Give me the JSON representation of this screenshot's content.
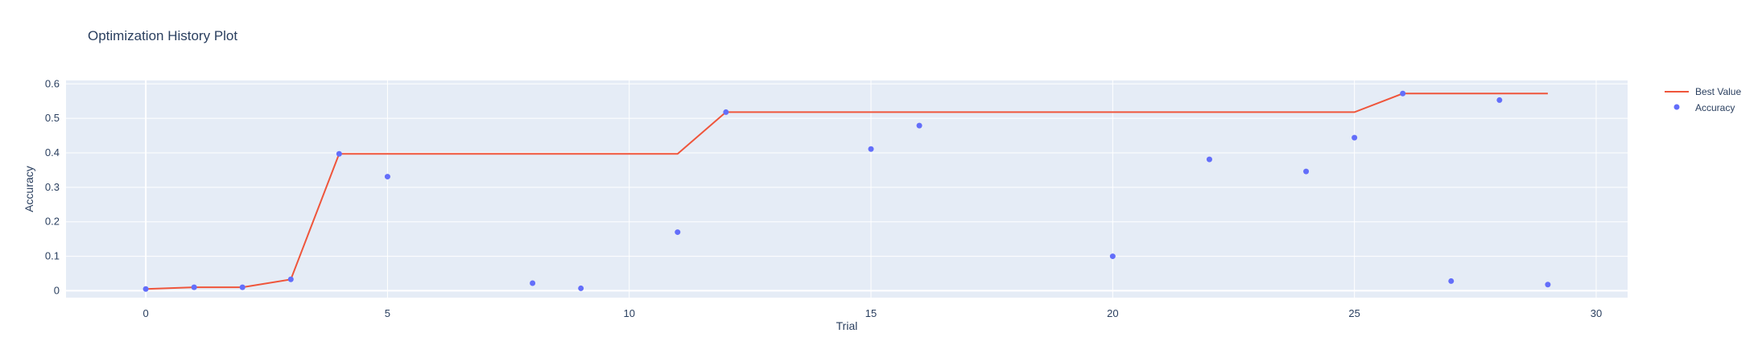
{
  "chart_data": {
    "type": "scatter",
    "title": "Optimization History Plot",
    "xlabel": "Trial",
    "ylabel": "Accuracy",
    "xlim": [
      -1.65,
      30.65
    ],
    "ylim": [
      -0.02,
      0.61
    ],
    "xticks": [
      0,
      5,
      10,
      15,
      20,
      25,
      30
    ],
    "yticks": [
      0,
      0.1,
      0.2,
      0.3,
      0.4,
      0.5,
      0.6
    ],
    "xtick_labels": [
      "0",
      "5",
      "10",
      "15",
      "20",
      "25",
      "30"
    ],
    "ytick_labels": [
      "0",
      "0.1",
      "0.2",
      "0.3",
      "0.4",
      "0.5",
      "0.6"
    ],
    "grid": true,
    "legend_position": "top-right",
    "colors": {
      "best_value": "#ef553b",
      "accuracy": "#636efa",
      "plot_bg": "#e5ecf6",
      "grid": "#ffffff"
    },
    "series": [
      {
        "name": "Best Value",
        "kind": "line",
        "x": [
          0,
          1,
          2,
          3,
          4,
          5,
          6,
          7,
          8,
          9,
          10,
          11,
          12,
          13,
          14,
          15,
          16,
          17,
          18,
          19,
          20,
          21,
          22,
          23,
          24,
          25,
          26,
          27,
          28,
          29
        ],
        "y": [
          0.005,
          0.01,
          0.01,
          0.033,
          0.397,
          0.397,
          0.397,
          0.397,
          0.397,
          0.397,
          0.397,
          0.397,
          0.518,
          0.518,
          0.518,
          0.518,
          0.518,
          0.518,
          0.518,
          0.518,
          0.518,
          0.518,
          0.518,
          0.518,
          0.518,
          0.518,
          0.572,
          0.572,
          0.572,
          0.572
        ]
      },
      {
        "name": "Accuracy",
        "kind": "markers",
        "x": [
          0,
          1,
          2,
          3,
          4,
          5,
          8,
          9,
          11,
          12,
          15,
          16,
          20,
          22,
          24,
          25,
          26,
          27,
          28,
          29
        ],
        "y": [
          0.005,
          0.01,
          0.01,
          0.033,
          0.397,
          0.331,
          0.022,
          0.007,
          0.17,
          0.518,
          0.411,
          0.479,
          0.1,
          0.381,
          0.346,
          0.444,
          0.572,
          0.028,
          0.553,
          0.018
        ]
      }
    ]
  }
}
